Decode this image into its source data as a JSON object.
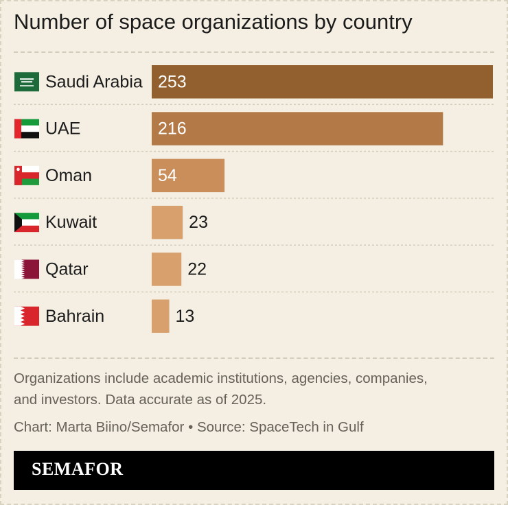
{
  "chart_data": {
    "type": "bar",
    "orientation": "horizontal",
    "title": "Number of space organizations by country",
    "categories": [
      "Saudi Arabia",
      "UAE",
      "Oman",
      "Kuwait",
      "Qatar",
      "Bahrain"
    ],
    "values": [
      253,
      216,
      54,
      23,
      22,
      13
    ],
    "flag_icons": [
      "saudi-arabia-flag-icon",
      "uae-flag-icon",
      "oman-flag-icon",
      "kuwait-flag-icon",
      "qatar-flag-icon",
      "bahrain-flag-icon"
    ],
    "bar_colors": [
      "#92602e",
      "#b37a48",
      "#c98e5a",
      "#d8a06c",
      "#d8a06c",
      "#d8a06c"
    ],
    "xlim": [
      0,
      253
    ],
    "grid": false,
    "legend": "none"
  },
  "notes": {
    "line1": "Organizations include academic institutions, agencies, companies,",
    "line2": "and investors. Data accurate as of 2025.",
    "credit": "Chart: Marta Biino/Semafor • Source: SpaceTech in Gulf"
  },
  "brand": {
    "logo_text": "SEMAFOR",
    "background": "#f4efe2"
  }
}
